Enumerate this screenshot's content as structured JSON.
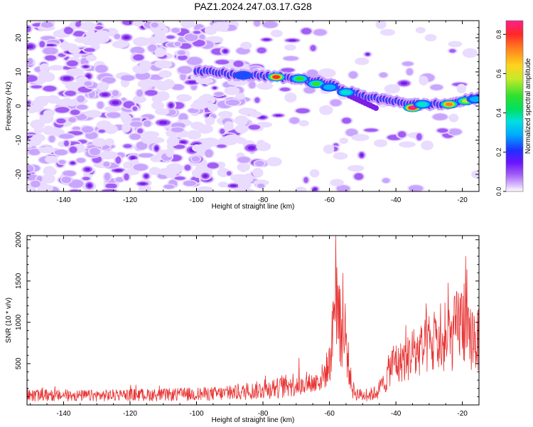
{
  "figure": {
    "title": "PAZ1.2024.247.03.17.G28"
  },
  "colors": {
    "snr_line": "#e83232",
    "frame": "#000000",
    "spectrogram_palette": [
      "#ffffff",
      "#e9dcff",
      "#c9a5ff",
      "#a25cf5",
      "#7a1ee8",
      "#4b14ff",
      "#1e4dff",
      "#00b4ff",
      "#00e6c8",
      "#30e030",
      "#b4ea2a",
      "#ffd21e",
      "#ff7d1e",
      "#ff2828",
      "#ff1e8c"
    ]
  },
  "chart_data": [
    {
      "type": "heatmap",
      "xlabel": "Height of straight line (km)",
      "ylabel": "Frequency (Hz)",
      "xlim": [
        -151,
        -15
      ],
      "ylim": [
        -25,
        25
      ],
      "xticks": [
        -140,
        -120,
        -100,
        -80,
        -60,
        -40,
        -20
      ],
      "yticks": [
        -20,
        -10,
        0,
        10,
        20
      ],
      "colorbar": {
        "label": "Normalized spectral amplitude",
        "range": [
          0,
          0.87
        ],
        "ticks": [
          "0.0",
          "0.2",
          "0.4",
          "0.6",
          "0.8"
        ]
      },
      "ridge": {
        "x": [
          -100,
          -95,
          -90,
          -85,
          -80,
          -75,
          -70,
          -65,
          -60,
          -55,
          -50,
          -45,
          -40,
          -35,
          -30,
          -25,
          -20,
          -15
        ],
        "y": [
          10,
          10,
          9.3,
          9,
          8.8,
          8.5,
          8,
          7.5,
          6.5,
          4.5,
          3,
          2,
          1.5,
          0.5,
          0.5,
          0.5,
          1.5,
          2.5
        ]
      },
      "peaks": [
        {
          "x": -91,
          "y": 9.5,
          "amplitude": 0.33
        },
        {
          "x": -86,
          "y": 9,
          "amplitude": 0.35
        },
        {
          "x": -76,
          "y": 8.5,
          "amplitude": 0.8
        },
        {
          "x": -69,
          "y": 8,
          "amplitude": 0.55
        },
        {
          "x": -64,
          "y": 6.5,
          "amplitude": 0.55
        },
        {
          "x": -60,
          "y": 5.5,
          "amplitude": 0.45
        },
        {
          "x": -55,
          "y": 4,
          "amplitude": 0.5
        },
        {
          "x": -35,
          "y": -0.5,
          "amplitude": 0.87
        },
        {
          "x": -32,
          "y": 0.5,
          "amplitude": 0.5
        },
        {
          "x": -24,
          "y": 0.5,
          "amplitude": 0.75
        },
        {
          "x": -19,
          "y": 1.5,
          "amplitude": 0.6
        },
        {
          "x": -16,
          "y": 2,
          "amplitude": 0.45
        }
      ]
    },
    {
      "type": "line",
      "xlabel": "Height of straight line (km)",
      "ylabel": "SNR (10 * v/v)",
      "xlim": [
        -151,
        -15
      ],
      "ylim": [
        0,
        2050
      ],
      "xticks": [
        -140,
        -120,
        -100,
        -80,
        -60,
        -40,
        -20
      ],
      "yticks": [
        500,
        1000,
        1500,
        2000
      ],
      "series": [
        {
          "x": [
            -151,
            -140,
            -130,
            -120,
            -110,
            -100,
            -90,
            -85,
            -80,
            -75,
            -70,
            -67,
            -64,
            -62,
            -60,
            -59,
            -58.5,
            -58,
            -57.5,
            -57,
            -56,
            -55,
            -54,
            -53,
            -52,
            -50,
            -48,
            -46,
            -44,
            -43,
            -42,
            -41,
            -40,
            -39,
            -38,
            -37,
            -36,
            -35,
            -34,
            -33,
            -32,
            -31,
            -30,
            -29,
            -28,
            -27,
            -26,
            -25,
            -24,
            -23,
            -22,
            -21,
            -20,
            -19,
            -18,
            -17,
            -16,
            -15
          ],
          "y": [
            120,
            120,
            120,
            130,
            130,
            140,
            150,
            170,
            200,
            220,
            280,
            350,
            380,
            480,
            700,
            1200,
            1950,
            2000,
            1600,
            1350,
            1200,
            1050,
            600,
            200,
            150,
            120,
            130,
            160,
            240,
            420,
            620,
            700,
            780,
            650,
            820,
            720,
            850,
            900,
            820,
            950,
            900,
            1000,
            1050,
            950,
            1050,
            1000,
            980,
            1000,
            1020,
            1150,
            1300,
            1400,
            1450,
            1250,
            1100,
            1200,
            1150,
            1080
          ]
        }
      ]
    }
  ]
}
